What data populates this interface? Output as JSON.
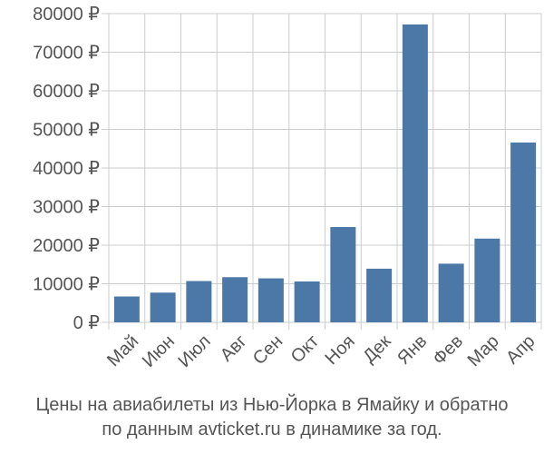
{
  "chart_data": {
    "type": "bar",
    "categories": [
      "Май",
      "Июн",
      "Июл",
      "Авг",
      "Сен",
      "Окт",
      "Ноя",
      "Дек",
      "Янв",
      "Фев",
      "Мар",
      "Апр"
    ],
    "values": [
      6700,
      7700,
      10700,
      11700,
      11400,
      10600,
      24700,
      13900,
      77200,
      15200,
      21700,
      46600
    ],
    "ylim": [
      0,
      80000
    ],
    "yticks": [
      0,
      10000,
      20000,
      30000,
      40000,
      50000,
      60000,
      70000,
      80000
    ],
    "ytick_labels": [
      "0 ₽",
      "10000 ₽",
      "20000 ₽",
      "30000 ₽",
      "40000 ₽",
      "50000 ₽",
      "60000 ₽",
      "70000 ₽",
      "80000 ₽"
    ],
    "grid": true,
    "bar_color": "#4c78a8",
    "grid_color": "#cccccc"
  },
  "caption": {
    "line1": "Цены на авиабилеты из Нью-Йорка в Ямайку и обратно",
    "line2": "по данным avticket.ru в динамике за год."
  }
}
